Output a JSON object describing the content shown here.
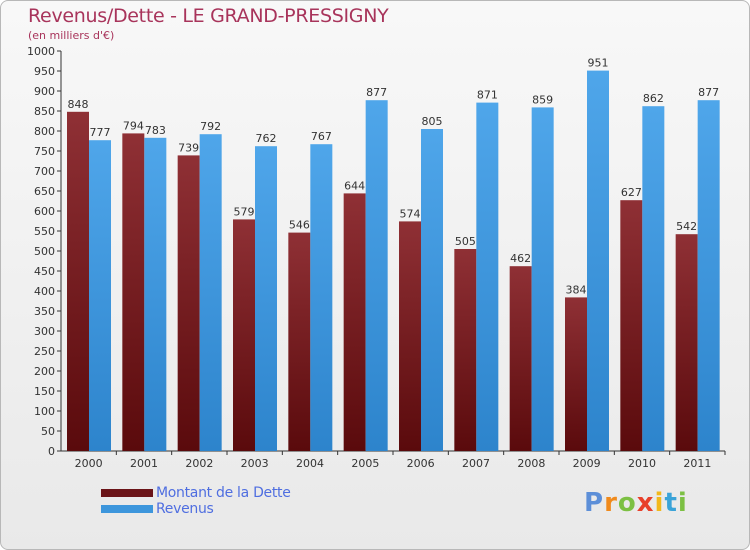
{
  "title": "Revenus/Dette - LE GRAND-PRESSIGNY",
  "subtitle": "(en milliers d'€)",
  "logo": {
    "text": "Proxiti",
    "letters": [
      "P",
      "r",
      "o",
      "x",
      "i",
      "t",
      "i"
    ],
    "colors": [
      "#5d8fd8",
      "#f08a1c",
      "#7cc043",
      "#e8402a",
      "#f2b81c",
      "#3aa3d8",
      "#7cc043"
    ]
  },
  "legend": [
    {
      "label": "Montant de la Dette",
      "color": "#6b1418"
    },
    {
      "label": "Revenus",
      "color": "#3d96dc"
    }
  ],
  "chart_data": {
    "type": "bar",
    "title": "Revenus/Dette - LE GRAND-PRESSIGNY",
    "subtitle": "(en milliers d'€)",
    "categories": [
      "2000",
      "2001",
      "2002",
      "2003",
      "2004",
      "2005",
      "2006",
      "2007",
      "2008",
      "2009",
      "2010",
      "2011"
    ],
    "series": [
      {
        "name": "Montant de la Dette",
        "color": "#6b1418",
        "values": [
          848,
          794,
          739,
          579,
          546,
          644,
          574,
          505,
          462,
          384,
          627,
          542
        ]
      },
      {
        "name": "Revenus",
        "color": "#3d96dc",
        "values": [
          777,
          783,
          792,
          762,
          767,
          877,
          805,
          871,
          859,
          951,
          862,
          877
        ]
      }
    ],
    "ylim": [
      0,
      1000
    ],
    "yticks": [
      0,
      50,
      100,
      150,
      200,
      250,
      300,
      350,
      400,
      450,
      500,
      550,
      600,
      650,
      700,
      750,
      800,
      850,
      900,
      950,
      1000
    ],
    "grid": false,
    "legend_position": "bottom-left"
  }
}
